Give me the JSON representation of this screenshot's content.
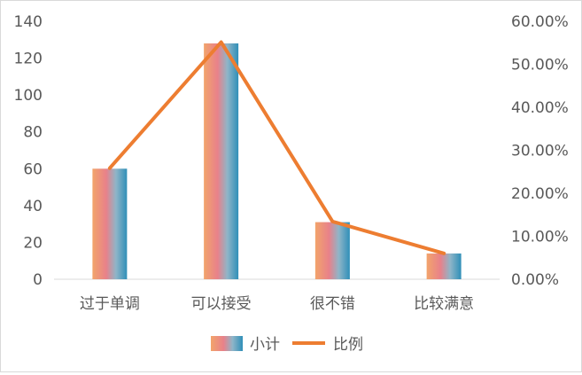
{
  "chart_data": {
    "type": "bar",
    "categories": [
      "过于单调",
      "可以接受",
      "很不错",
      "比较满意"
    ],
    "series": [
      {
        "name": "小计",
        "type": "bar",
        "axis": "left",
        "values": [
          60,
          128,
          31,
          14
        ],
        "colors": [
          "#f2a46b",
          "#e8818a",
          "#8fb5c8",
          "#2f8fb8"
        ]
      },
      {
        "name": "比例",
        "type": "line",
        "axis": "right",
        "values": [
          0.2584,
          0.5515,
          0.1343,
          0.0601
        ],
        "color": "#ed7d31"
      }
    ],
    "y_left": {
      "min": 0,
      "max": 140,
      "step": 20,
      "ticks": [
        "0",
        "20",
        "40",
        "60",
        "80",
        "100",
        "120",
        "140"
      ]
    },
    "y_right": {
      "min": 0,
      "max": 0.6,
      "step": 0.1,
      "ticks": [
        "0.00%",
        "10.00%",
        "20.00%",
        "30.00%",
        "40.00%",
        "50.00%",
        "60.00%"
      ]
    },
    "grid": false,
    "legend": "bottom"
  }
}
